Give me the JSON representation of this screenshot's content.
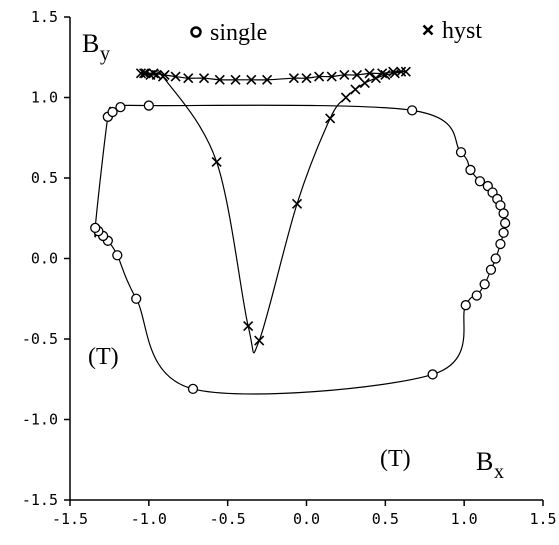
{
  "chart_data": {
    "type": "scatter",
    "x_label": {
      "main": "B",
      "sub": "x"
    },
    "y_label": {
      "main": "B",
      "sub": "y"
    },
    "annotations": [
      "(T)",
      "(T)"
    ],
    "xlim": [
      -1.5,
      1.5
    ],
    "ylim": [
      -1.5,
      1.5
    ],
    "xticks": [
      -1.5,
      {
        "value": -1.0,
        "label": "-1.0"
      },
      -0.5,
      {
        "value": 0.0,
        "label": "0.0"
      },
      0.5,
      {
        "value": 1.0,
        "label": "1.0"
      },
      1.5
    ],
    "yticks": [
      -1.5,
      {
        "value": -1.0,
        "label": "-1.0"
      },
      -0.5,
      {
        "value": 0.0,
        "label": "0.0"
      },
      0.5,
      {
        "value": 1.0,
        "label": "1.0"
      },
      1.5
    ],
    "series": [
      {
        "name": "single",
        "marker": "circle",
        "color": "#000000",
        "closed": true,
        "x": [
          -1.26,
          -1.23,
          -1.18,
          -1.0,
          0.67,
          0.98,
          1.04,
          1.1,
          1.15,
          1.18,
          1.21,
          1.23,
          1.25,
          1.26,
          1.25,
          1.23,
          1.2,
          1.17,
          1.13,
          1.08,
          1.01,
          0.8,
          -0.72,
          -1.08,
          -1.2,
          -1.26,
          -1.29,
          -1.32,
          -1.34
        ],
        "values": [
          0.88,
          0.91,
          0.94,
          0.95,
          0.92,
          0.66,
          0.55,
          0.48,
          0.45,
          0.41,
          0.37,
          0.33,
          0.28,
          0.22,
          0.16,
          0.09,
          0.0,
          -0.07,
          -0.16,
          -0.23,
          -0.29,
          -0.72,
          -0.81,
          -0.25,
          0.02,
          0.11,
          0.14,
          0.17,
          0.19
        ]
      },
      {
        "name": "hyst",
        "marker": "cross",
        "color": "#000000",
        "closed": false,
        "x": [
          -1.05,
          -1.02,
          -0.99,
          -0.95,
          -0.91,
          -0.57,
          -0.37,
          -0.3,
          -0.06,
          0.15,
          0.25,
          0.31,
          0.37,
          0.44,
          0.5,
          0.56,
          0.6,
          0.63,
          0.55,
          0.48,
          0.4,
          0.32,
          0.24,
          0.16,
          0.08,
          0.0,
          -0.08,
          -0.25,
          -0.35,
          -0.45,
          -0.55,
          -0.65,
          -0.75,
          -0.83,
          -0.9,
          -0.97,
          -1.03
        ],
        "values": [
          1.15,
          1.15,
          1.14,
          1.14,
          1.13,
          0.6,
          -0.42,
          -0.51,
          0.34,
          0.87,
          1.0,
          1.05,
          1.09,
          1.12,
          1.14,
          1.15,
          1.16,
          1.16,
          1.16,
          1.15,
          1.15,
          1.14,
          1.14,
          1.13,
          1.13,
          1.12,
          1.12,
          1.11,
          1.11,
          1.11,
          1.11,
          1.12,
          1.12,
          1.13,
          1.14,
          1.15,
          1.15
        ]
      }
    ]
  }
}
